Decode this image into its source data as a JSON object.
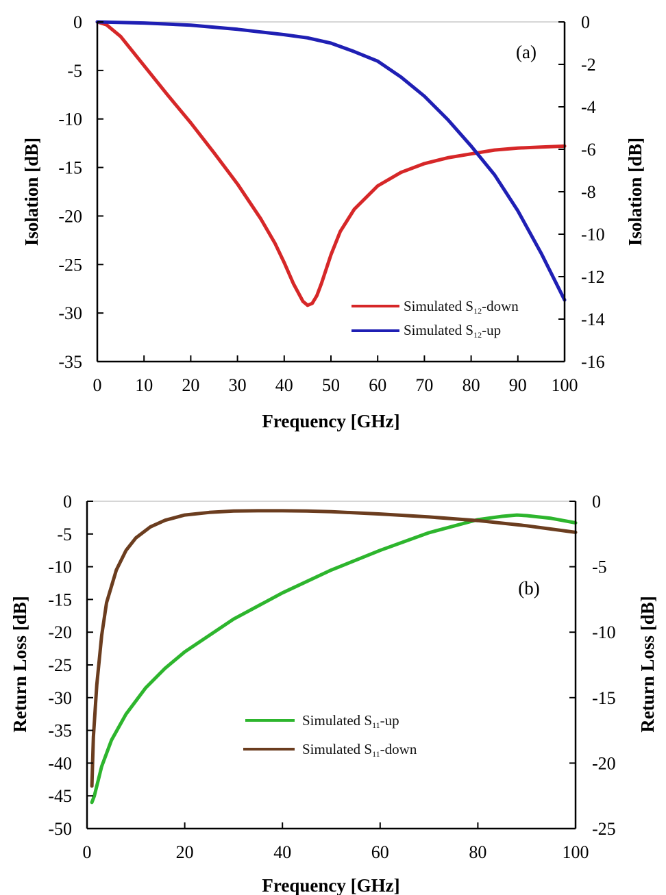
{
  "chart_data": [
    {
      "type": "line",
      "panel_label": "(a)",
      "xlabel": "Frequency [GHz]",
      "ylabel": "Isolation [dB]",
      "ylabel_right": "Isolation [dB]",
      "xlim": [
        0,
        100
      ],
      "ylim": [
        -35,
        0
      ],
      "ylim_right": [
        -16,
        0
      ],
      "x_ticks": [
        "0",
        "10",
        "20",
        "30",
        "40",
        "50",
        "60",
        "70",
        "80",
        "90",
        "100"
      ],
      "y_ticks": [
        "0",
        "-5",
        "-10",
        "-15",
        "-20",
        "-25",
        "-30",
        "-35"
      ],
      "y_ticks_right": [
        "0",
        "-2",
        "-4",
        "-6",
        "-8",
        "-10",
        "-12",
        "-14",
        "-16"
      ],
      "legend_position": "bottom-right",
      "series": [
        {
          "name": "Simulated S12-down",
          "label_main": "Simulated S",
          "label_sub": "12",
          "label_tail": "-down",
          "axis": "left",
          "color": "#d62728",
          "x": [
            0,
            2,
            5,
            10,
            15,
            20,
            25,
            30,
            35,
            38,
            40,
            42,
            44,
            45,
            46,
            47,
            48,
            50,
            52,
            55,
            60,
            65,
            70,
            75,
            80,
            85,
            90,
            95,
            100
          ],
          "y": [
            0,
            -0.3,
            -1.5,
            -4.5,
            -7.5,
            -10.4,
            -13.5,
            -16.7,
            -20.3,
            -22.8,
            -24.8,
            -27.0,
            -28.8,
            -29.2,
            -29.0,
            -28.2,
            -26.9,
            -24.0,
            -21.6,
            -19.3,
            -16.9,
            -15.5,
            -14.6,
            -14.0,
            -13.6,
            -13.2,
            -13.0,
            -12.9,
            -12.8
          ]
        },
        {
          "name": "Simulated S12-up",
          "label_main": "Simulated S",
          "label_sub": "12",
          "label_tail": "-up",
          "axis": "right",
          "color": "#1f1fb4",
          "x": [
            0,
            10,
            20,
            30,
            40,
            45,
            50,
            55,
            60,
            65,
            70,
            75,
            80,
            85,
            90,
            95,
            100
          ],
          "y": [
            0,
            -0.05,
            -0.15,
            -0.35,
            -0.6,
            -0.75,
            -1.0,
            -1.4,
            -1.85,
            -2.6,
            -3.5,
            -4.6,
            -5.85,
            -7.2,
            -8.9,
            -10.9,
            -13.1
          ]
        }
      ]
    },
    {
      "type": "line",
      "panel_label": "(b)",
      "xlabel": "Frequency [GHz]",
      "ylabel": "Return Loss [dB]",
      "ylabel_right": "Return Loss [dB]",
      "xlim": [
        0,
        100
      ],
      "ylim": [
        -50,
        0
      ],
      "ylim_right": [
        -25,
        0
      ],
      "x_ticks": [
        "0",
        "20",
        "40",
        "60",
        "80",
        "100"
      ],
      "y_ticks": [
        "0",
        "-5",
        "-10",
        "-15",
        "-20",
        "-25",
        "-30",
        "-35",
        "-40",
        "-45",
        "-50"
      ],
      "y_ticks_right": [
        "0",
        "-5",
        "-10",
        "-15",
        "-20",
        "-25"
      ],
      "legend_position": "center",
      "series": [
        {
          "name": "Simulated S11-up",
          "label_main": "Simulated S",
          "label_sub": "11",
          "label_tail": "-up",
          "axis": "left",
          "color": "#2db52d",
          "x": [
            1,
            1.5,
            3,
            5,
            8,
            12,
            16,
            20,
            30,
            40,
            50,
            60,
            70,
            80,
            85,
            88,
            90,
            95,
            100
          ],
          "y": [
            -46,
            -45,
            -40.5,
            -36.5,
            -32.5,
            -28.5,
            -25.5,
            -23.0,
            -18.0,
            -14.0,
            -10.5,
            -7.5,
            -4.8,
            -2.8,
            -2.3,
            -2.1,
            -2.2,
            -2.6,
            -3.3
          ]
        },
        {
          "name": "Simulated S11-down",
          "label_main": "Simulated S",
          "label_sub": "11",
          "label_tail": "-down",
          "axis": "left",
          "color": "#6b3d1f",
          "x": [
            1,
            1.3,
            2,
            3,
            4,
            6,
            8,
            10,
            13,
            16,
            20,
            25,
            30,
            35,
            40,
            45,
            50,
            60,
            70,
            80,
            90,
            100
          ],
          "y": [
            -43.5,
            -36,
            -28,
            -20.5,
            -15.5,
            -10.5,
            -7.5,
            -5.6,
            -3.9,
            -2.9,
            -2.1,
            -1.7,
            -1.5,
            -1.45,
            -1.45,
            -1.5,
            -1.6,
            -1.95,
            -2.4,
            -2.95,
            -3.75,
            -4.75
          ]
        }
      ]
    }
  ]
}
